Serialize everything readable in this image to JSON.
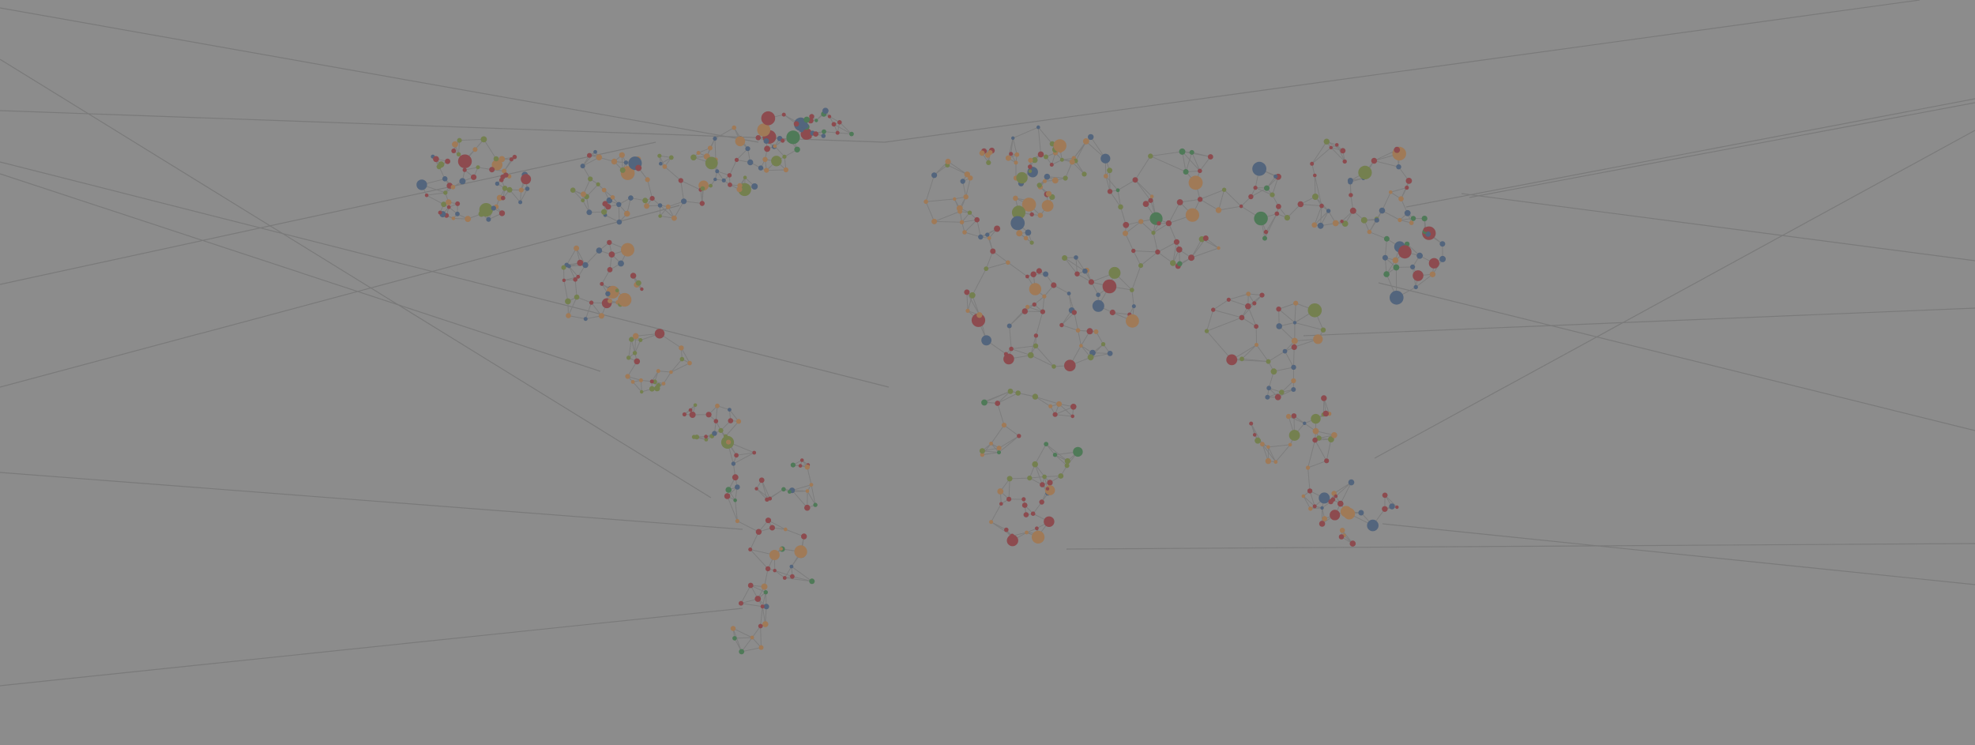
{
  "palette": {
    "background": "#8c8c8c",
    "edge": "#7d7d7d",
    "red": "#8d4b4f",
    "green": "#4f7a58",
    "orange": "#a07a57",
    "olive": "#74804f",
    "blue": "#53657d"
  },
  "map_content": {
    "shape": "world-map",
    "style": "network-of-nodes",
    "node_colors": [
      "red",
      "green",
      "orange",
      "olive",
      "blue"
    ]
  }
}
